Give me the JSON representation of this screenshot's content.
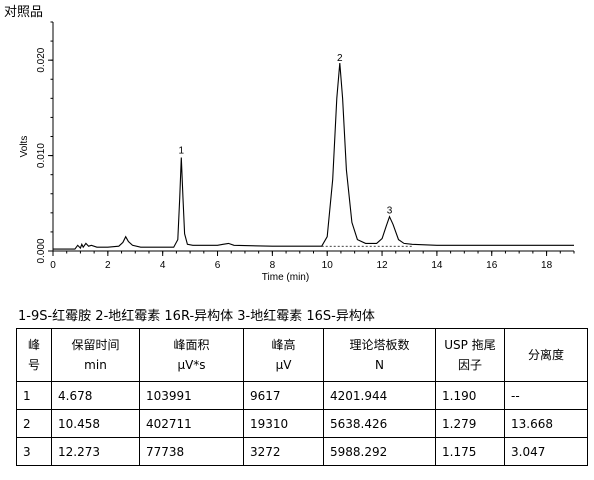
{
  "page_title": "对照品",
  "legend_text": "1-9S-红霉胺   2-地红霉素 16R-异构体   3-地红霉素 16S-异构体",
  "chart_data": {
    "type": "line",
    "xlabel": "Time (min)",
    "ylabel": "Volts",
    "xlim": [
      0,
      19
    ],
    "ylim": [
      0,
      0.024
    ],
    "x_ticks": [
      "0",
      "2",
      "4",
      "6",
      "8",
      "10",
      "12",
      "14",
      "16",
      "18"
    ],
    "y_ticks": [
      "0.000",
      "0.010",
      "0.020"
    ],
    "peaks": [
      {
        "label": "1",
        "time": 4.678,
        "height": 0.0096
      },
      {
        "label": "2",
        "time": 10.458,
        "height": 0.0193
      },
      {
        "label": "3",
        "time": 12.273,
        "height": 0.0033
      }
    ],
    "series": [
      {
        "x": [
          0.0,
          0.8,
          0.9,
          1.0,
          1.05,
          1.1,
          1.2,
          1.3,
          1.4,
          1.6,
          2.0,
          2.4,
          2.55,
          2.65,
          2.75,
          2.9,
          3.2,
          4.0,
          4.4,
          4.55,
          4.62,
          4.678,
          4.74,
          4.8,
          4.9,
          5.1,
          6.0,
          6.2,
          6.4,
          6.6,
          8.0,
          9.8,
          10.0,
          10.2,
          10.35,
          10.458,
          10.56,
          10.7,
          10.9,
          11.1,
          11.4,
          11.8,
          12.0,
          12.15,
          12.273,
          12.4,
          12.6,
          12.8,
          13.1,
          14.0,
          16.0,
          18.0,
          19.0
        ],
        "y": [
          0.0002,
          0.0002,
          0.0006,
          0.0003,
          0.0007,
          0.0004,
          0.0008,
          0.0005,
          0.0006,
          0.0004,
          0.0004,
          0.0005,
          0.0009,
          0.0015,
          0.001,
          0.0006,
          0.0004,
          0.0004,
          0.0004,
          0.0012,
          0.0055,
          0.0098,
          0.0055,
          0.0018,
          0.0007,
          0.0006,
          0.0006,
          0.0007,
          0.0008,
          0.0006,
          0.0005,
          0.0005,
          0.0015,
          0.0075,
          0.016,
          0.0197,
          0.016,
          0.0085,
          0.003,
          0.0012,
          0.0008,
          0.0008,
          0.0013,
          0.0026,
          0.0036,
          0.0028,
          0.0012,
          0.0008,
          0.0007,
          0.0006,
          0.0006,
          0.0006,
          0.0006
        ]
      }
    ]
  },
  "table": {
    "headers": [
      [
        "峰",
        "号"
      ],
      [
        "保留时间",
        "min"
      ],
      [
        "峰面积",
        "μV*s"
      ],
      [
        "峰高",
        "μV"
      ],
      [
        "理论塔板数",
        "N"
      ],
      [
        "USP 拖尾",
        "因子"
      ],
      [
        "分离度",
        ""
      ]
    ],
    "rows": [
      [
        "1",
        "4.678",
        "103991",
        "9617",
        "4201.944",
        "1.190",
        "--"
      ],
      [
        "2",
        "10.458",
        "402711",
        "19310",
        "5638.426",
        "1.279",
        "13.668"
      ],
      [
        "3",
        "12.273",
        "77738",
        "3272",
        "5988.292",
        "1.175",
        "3.047"
      ]
    ]
  }
}
